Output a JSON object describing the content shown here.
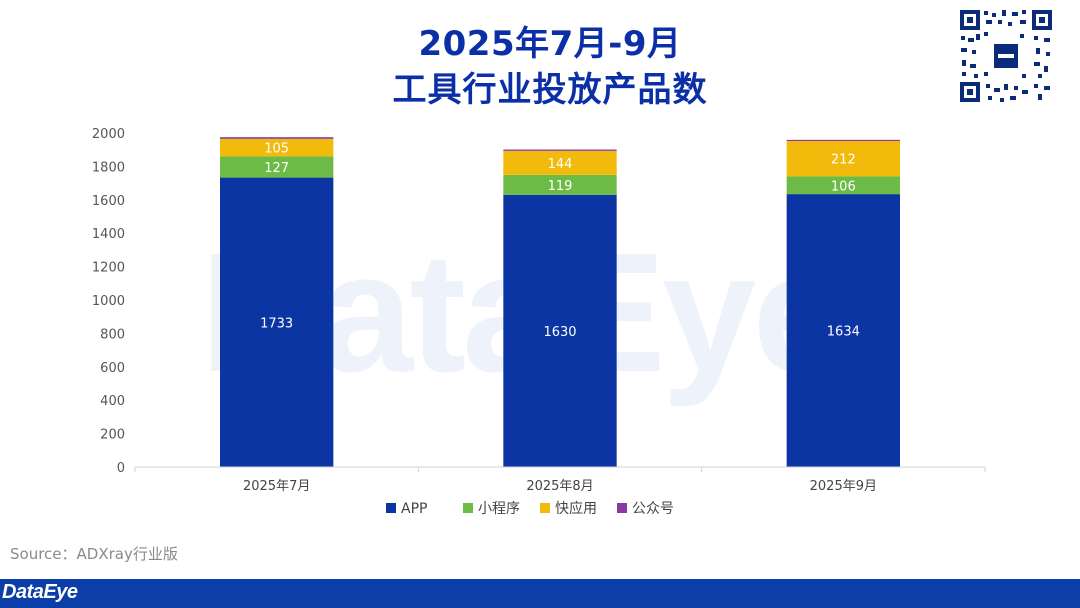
{
  "header": {
    "title_line1": "2025年7月-9月",
    "title_line2": "工具行业投放产品数"
  },
  "watermark_text": "DataEye",
  "source_text": "Source：ADXray行业版",
  "footer": {
    "logo_text": "DataEye"
  },
  "qr_icon": "qr-code-icon",
  "chart_data": {
    "type": "bar",
    "stacked": true,
    "categories": [
      "2025年7月",
      "2025年8月",
      "2025年9月"
    ],
    "series": [
      {
        "name": "APP",
        "values": [
          1733,
          1630,
          1634
        ],
        "color": "#0a35a3",
        "label_color": "#ffffff"
      },
      {
        "name": "小程序",
        "values": [
          127,
          119,
          106
        ],
        "color": "#6cbb46",
        "label_color": "#ffffff"
      },
      {
        "name": "快应用",
        "values": [
          105,
          144,
          212
        ],
        "color": "#f2bb0b",
        "label_color": "#ffffff"
      },
      {
        "name": "公众号",
        "values": [
          10,
          8,
          7
        ],
        "color": "#8b3aa3",
        "label_color": ""
      }
    ],
    "ylim": [
      0,
      2000
    ],
    "yticks": [
      0,
      200,
      400,
      600,
      800,
      1000,
      1200,
      1400,
      1600,
      1800,
      2000
    ],
    "legend_position": "bottom",
    "grid": false,
    "title": "",
    "xlabel": "",
    "ylabel": ""
  }
}
